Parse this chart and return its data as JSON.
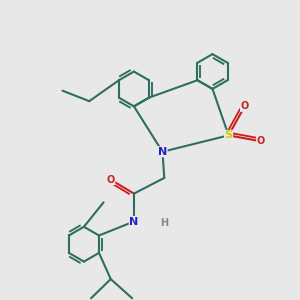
{
  "background_color": "#e8e8e8",
  "bond_color": "#2d6e5e",
  "N_color": "#2020cc",
  "O_color": "#cc2020",
  "S_color": "#cccc00",
  "H_color": "#888888",
  "bond_width": 1.5,
  "figsize": [
    3.0,
    3.0
  ],
  "dpi": 100,
  "xlim": [
    0,
    10
  ],
  "ylim": [
    0,
    10
  ]
}
